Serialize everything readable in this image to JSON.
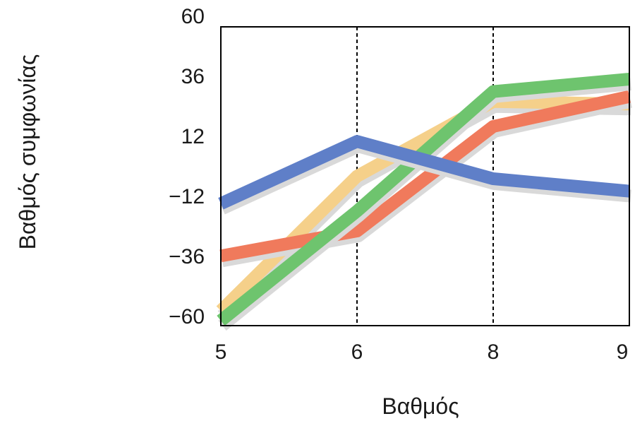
{
  "chart_data": {
    "type": "line",
    "title": "",
    "xlabel": "Βαθμός",
    "ylabel": "Βαθμός συμφωνίας",
    "categories": [
      "5",
      "6",
      "8",
      "9"
    ],
    "yticks": [
      "60",
      "36",
      "12",
      "−12",
      "−36",
      "−60"
    ],
    "ytick_values": [
      60,
      36,
      12,
      -12,
      -36,
      -60
    ],
    "ylim": [
      -60,
      60
    ],
    "grid": false,
    "reference_lines_at": [
      "6",
      "8"
    ],
    "series": [
      {
        "color": "#f5d08a",
        "values": [
          -54,
          0,
          30,
          29
        ]
      },
      {
        "color": "#f07a5c",
        "values": [
          -32,
          -22,
          20,
          32
        ]
      },
      {
        "color": "#6ec46e",
        "values": [
          -58,
          -14,
          34,
          39
        ]
      },
      {
        "color": "#5f7fc8",
        "values": [
          -11,
          14,
          -1,
          -6
        ]
      }
    ]
  }
}
